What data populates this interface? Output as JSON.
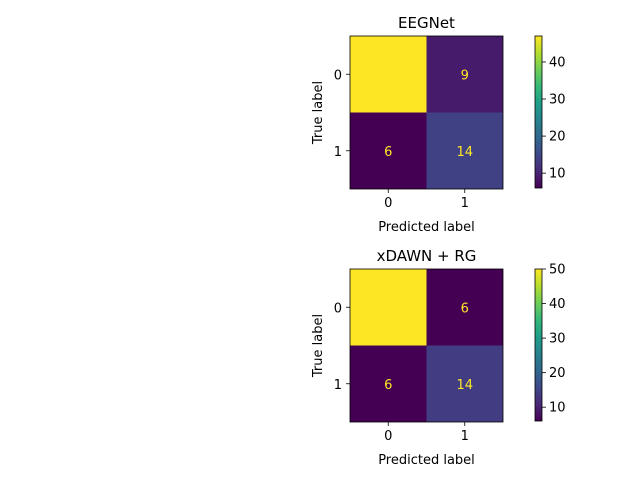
{
  "chart_data": [
    {
      "type": "heatmap",
      "title": "EEGNet",
      "xlabel": "Predicted label",
      "ylabel": "True label",
      "x_categories": [
        "0",
        "1"
      ],
      "y_categories": [
        "0",
        "1"
      ],
      "values": [
        [
          47,
          9
        ],
        [
          6,
          14
        ]
      ],
      "colorbar": {
        "range": [
          6,
          47
        ],
        "ticks": [
          10,
          20,
          30,
          40
        ]
      },
      "colormap": "viridis",
      "value_label_color": "#fde725"
    },
    {
      "type": "heatmap",
      "title": "xDAWN + RG",
      "xlabel": "Predicted label",
      "ylabel": "True label",
      "x_categories": [
        "0",
        "1"
      ],
      "y_categories": [
        "0",
        "1"
      ],
      "values": [
        [
          50,
          6
        ],
        [
          6,
          14
        ]
      ],
      "colorbar": {
        "range": [
          6,
          50
        ],
        "ticks": [
          10,
          20,
          30,
          40,
          50
        ]
      },
      "colormap": "viridis",
      "value_label_color": "#fde725"
    }
  ]
}
